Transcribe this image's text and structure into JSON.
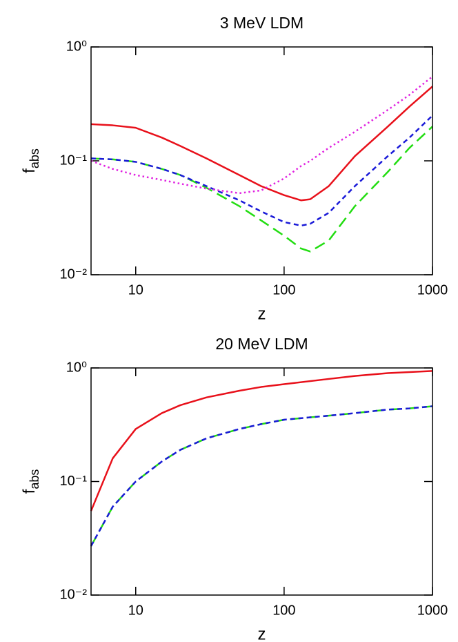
{
  "chart_data": [
    {
      "type": "line",
      "title": "3 MeV LDM",
      "x_label": "z",
      "y_label": "f",
      "y_label_sub": "abs",
      "xscale": "log",
      "yscale": "log",
      "xlim": [
        5,
        1000
      ],
      "ylim": [
        0.01,
        1
      ],
      "xticks": [
        10,
        100,
        1000
      ],
      "yticks": [
        {
          "value": 0.01,
          "label": "10⁻²"
        },
        {
          "value": 0.1,
          "label": "10⁻¹"
        },
        {
          "value": 1,
          "label": "10⁰"
        }
      ],
      "x": [
        5,
        7,
        10,
        15,
        20,
        30,
        50,
        70,
        100,
        130,
        150,
        200,
        300,
        500,
        700,
        1000
      ],
      "series": [
        {
          "color": "#e8101a",
          "dash": "solid",
          "values": [
            0.21,
            0.205,
            0.195,
            0.16,
            0.135,
            0.105,
            0.075,
            0.06,
            0.05,
            0.045,
            0.046,
            0.06,
            0.11,
            0.2,
            0.3,
            0.45
          ]
        },
        {
          "color": "#22dd11",
          "dash": "longdash",
          "values": [
            0.105,
            0.103,
            0.098,
            0.085,
            0.075,
            0.058,
            0.04,
            0.03,
            0.022,
            0.017,
            0.016,
            0.02,
            0.04,
            0.08,
            0.13,
            0.2
          ]
        },
        {
          "color": "#1a1ad8",
          "dash": "dashed",
          "values": [
            0.105,
            0.103,
            0.098,
            0.085,
            0.075,
            0.06,
            0.045,
            0.036,
            0.029,
            0.027,
            0.028,
            0.035,
            0.06,
            0.11,
            0.16,
            0.25
          ]
        },
        {
          "color": "#e020e0",
          "dash": "dotted",
          "values": [
            0.1,
            0.085,
            0.075,
            0.068,
            0.063,
            0.057,
            0.052,
            0.055,
            0.07,
            0.09,
            0.1,
            0.13,
            0.18,
            0.28,
            0.38,
            0.55
          ]
        }
      ]
    },
    {
      "type": "line",
      "title": "20 MeV LDM",
      "x_label": "z",
      "y_label": "f",
      "y_label_sub": "abs",
      "xscale": "log",
      "yscale": "log",
      "xlim": [
        5,
        1000
      ],
      "ylim": [
        0.01,
        1
      ],
      "xticks": [
        10,
        100,
        1000
      ],
      "yticks": [
        {
          "value": 0.01,
          "label": "10⁻²"
        },
        {
          "value": 0.1,
          "label": "10⁻¹"
        },
        {
          "value": 1,
          "label": "10⁰"
        }
      ],
      "x": [
        5,
        7,
        10,
        15,
        20,
        30,
        50,
        70,
        100,
        200,
        300,
        500,
        700,
        1000
      ],
      "series": [
        {
          "color": "#e8101a",
          "dash": "solid",
          "values": [
            0.055,
            0.16,
            0.29,
            0.4,
            0.47,
            0.55,
            0.63,
            0.68,
            0.72,
            0.8,
            0.85,
            0.9,
            0.92,
            0.94
          ]
        },
        {
          "color": "#22dd11",
          "dash": "longdash",
          "values": [
            0.027,
            0.06,
            0.1,
            0.15,
            0.19,
            0.24,
            0.29,
            0.32,
            0.35,
            0.38,
            0.4,
            0.43,
            0.44,
            0.46
          ]
        },
        {
          "color": "#1a1ad8",
          "dash": "dashed",
          "values": [
            0.027,
            0.06,
            0.1,
            0.15,
            0.19,
            0.24,
            0.29,
            0.32,
            0.35,
            0.38,
            0.4,
            0.43,
            0.44,
            0.46
          ]
        }
      ]
    }
  ]
}
